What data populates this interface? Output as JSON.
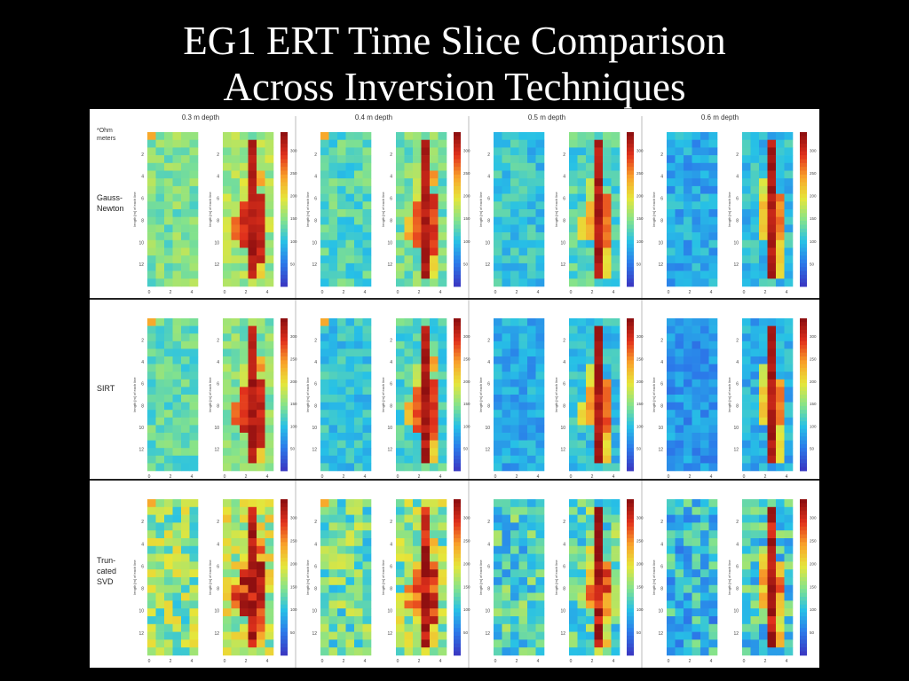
{
  "slide": {
    "title_line1": "EG1 ERT Time Slice Comparison",
    "title_line2": "Across Inversion Techniques"
  },
  "chart_data": {
    "type": "heatmap",
    "title": "EG1 ERT Time Slice Comparison Across Inversion Techniques",
    "unit_note": "*Ohm meters",
    "columns": [
      "0.3 m depth",
      "0.4 m depth",
      "0.5 m depth",
      "0.6 m depth"
    ],
    "rows": [
      "Gauss-Newton",
      "SIRT",
      "Truncated SVD"
    ],
    "row_label_lines": [
      [
        "Gauss-",
        "Newton"
      ],
      [
        "SIRT"
      ],
      [
        "Trun-",
        "cated",
        "SVD"
      ]
    ],
    "ylabel": "length [m] of each line",
    "x_ticks": [
      "0",
      "2",
      "4"
    ],
    "y_ticks": [
      "2",
      "4",
      "6",
      "8",
      "10",
      "12"
    ],
    "colorbar_ticks": [
      "50",
      "100",
      "150",
      "200",
      "250",
      "300"
    ],
    "colorbar_range": [
      0,
      340
    ],
    "colormap": [
      "#3a3bc4",
      "#2b7bea",
      "#27c1e6",
      "#86e38a",
      "#e6e63a",
      "#f9a22a",
      "#e2321c",
      "#8f0f10"
    ]
  }
}
